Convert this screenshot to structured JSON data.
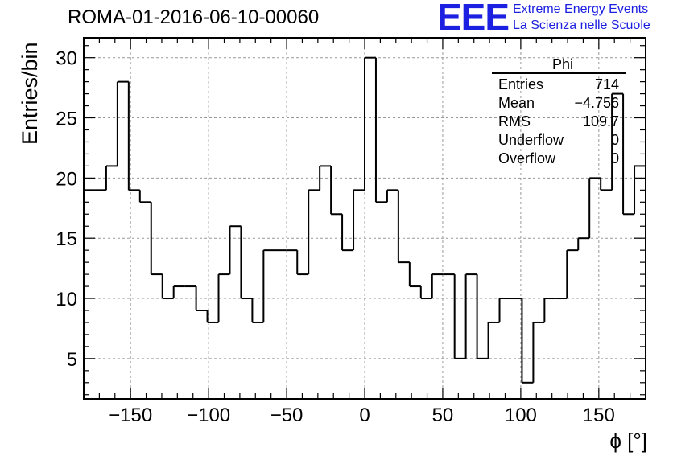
{
  "title": "ROMA-01-2016-06-10-00060",
  "logo": {
    "mark": "EEE",
    "line1": "Extreme Energy Events",
    "line2": "La Scienza nelle Scuole",
    "color": "#1c20e0"
  },
  "stats_box": {
    "name": "Phi",
    "rows": [
      {
        "label": "Entries",
        "value": "714"
      },
      {
        "label": "Mean",
        "value": "−4.756"
      },
      {
        "label": "RMS",
        "value": "109.7"
      },
      {
        "label": "Underflow",
        "value": "0"
      },
      {
        "label": "Overflow",
        "value": "0"
      }
    ]
  },
  "chart_data": {
    "type": "bar",
    "histogram": true,
    "title": "ROMA-01-2016-06-10-00060",
    "xlabel": "ϕ [°]",
    "ylabel": "Entries/bin",
    "xlim": [
      -180,
      180
    ],
    "ylim": [
      1.65,
      31.65
    ],
    "bin_width": 7.2,
    "bin_low_edges": [
      -180,
      -172.8,
      -165.6,
      -158.4,
      -151.2,
      -144,
      -136.8,
      -129.6,
      -122.4,
      -115.2,
      -108,
      -100.8,
      -93.6,
      -86.4,
      -79.2,
      -72,
      -64.8,
      -57.6,
      -50.4,
      -43.2,
      -36,
      -28.8,
      -21.6,
      -14.4,
      -7.2,
      0,
      7.2,
      14.4,
      21.6,
      28.8,
      36,
      43.2,
      50.4,
      57.6,
      64.8,
      72,
      79.2,
      86.4,
      93.6,
      100.8,
      108,
      115.2,
      122.4,
      129.6,
      136.8,
      144,
      151.2,
      158.4,
      165.6,
      172.8
    ],
    "values": [
      19,
      19,
      21,
      28,
      19,
      18,
      12,
      10,
      11,
      11,
      9,
      8,
      12,
      16,
      10,
      8,
      14,
      14,
      14,
      12,
      19,
      21,
      17,
      14,
      19,
      30,
      18,
      19,
      13,
      11,
      10,
      12,
      12,
      5,
      12,
      5,
      8,
      10,
      10,
      3,
      8,
      10,
      10,
      14,
      15,
      20,
      19,
      27,
      17,
      21
    ],
    "x_ticks": [
      -150,
      -100,
      -50,
      0,
      50,
      100,
      150
    ],
    "x_tick_labels": [
      "−150",
      "−100",
      "−50",
      "0",
      "50",
      "100",
      "150"
    ],
    "y_ticks": [
      5,
      10,
      15,
      20,
      25,
      30
    ],
    "y_tick_labels": [
      "5",
      "10",
      "15",
      "20",
      "25",
      "30"
    ],
    "grid": true,
    "line_color": "#000000"
  }
}
